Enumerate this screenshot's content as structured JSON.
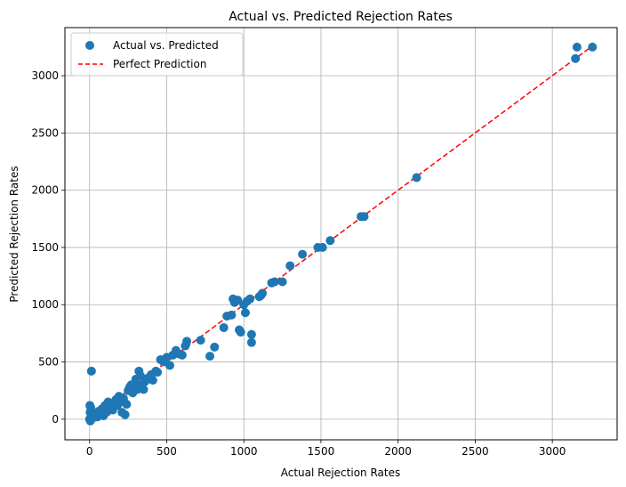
{
  "chart_data": {
    "type": "scatter",
    "title": "Actual vs. Predicted Rejection Rates",
    "xlabel": "Actual Rejection Rates",
    "ylabel": "Predicted Rejection Rates",
    "xlim": [
      -160,
      3420
    ],
    "ylim": [
      -180,
      3420
    ],
    "xticks": [
      0,
      500,
      1000,
      1500,
      2000,
      2500,
      3000
    ],
    "yticks": [
      0,
      500,
      1000,
      1500,
      2000,
      2500,
      3000
    ],
    "grid": true,
    "legend": {
      "placement": "top-left",
      "entries": [
        {
          "label": "Actual vs. Predicted",
          "marker": "circle",
          "color": "#1f77b4"
        },
        {
          "label": "Perfect Prediction",
          "marker": "dashed-line",
          "color": "#ff0000"
        }
      ]
    },
    "series": [
      {
        "color": "#1f77b4",
        "marker": "circle",
        "points": [
          [
            0,
            0
          ],
          [
            5,
            -15
          ],
          [
            10,
            20
          ],
          [
            3,
            60
          ],
          [
            8,
            100
          ],
          [
            2,
            120
          ],
          [
            12,
            420
          ],
          [
            20,
            10
          ],
          [
            30,
            30
          ],
          [
            40,
            50
          ],
          [
            50,
            20
          ],
          [
            60,
            70
          ],
          [
            70,
            40
          ],
          [
            80,
            90
          ],
          [
            90,
            30
          ],
          [
            100,
            120
          ],
          [
            110,
            60
          ],
          [
            120,
            150
          ],
          [
            130,
            90
          ],
          [
            140,
            110
          ],
          [
            150,
            80
          ],
          [
            160,
            140
          ],
          [
            170,
            170
          ],
          [
            180,
            120
          ],
          [
            190,
            200
          ],
          [
            200,
            150
          ],
          [
            210,
            60
          ],
          [
            220,
            180
          ],
          [
            230,
            40
          ],
          [
            240,
            130
          ],
          [
            250,
            250
          ],
          [
            260,
            280
          ],
          [
            270,
            300
          ],
          [
            280,
            230
          ],
          [
            290,
            310
          ],
          [
            300,
            350
          ],
          [
            310,
            260
          ],
          [
            320,
            420
          ],
          [
            330,
            380
          ],
          [
            340,
            300
          ],
          [
            350,
            260
          ],
          [
            360,
            330
          ],
          [
            380,
            360
          ],
          [
            400,
            390
          ],
          [
            410,
            340
          ],
          [
            430,
            420
          ],
          [
            440,
            410
          ],
          [
            460,
            520
          ],
          [
            480,
            500
          ],
          [
            500,
            540
          ],
          [
            520,
            470
          ],
          [
            540,
            560
          ],
          [
            560,
            600
          ],
          [
            580,
            570
          ],
          [
            600,
            560
          ],
          [
            620,
            640
          ],
          [
            630,
            680
          ],
          [
            720,
            690
          ],
          [
            780,
            550
          ],
          [
            810,
            630
          ],
          [
            870,
            800
          ],
          [
            890,
            900
          ],
          [
            920,
            910
          ],
          [
            930,
            1050
          ],
          [
            940,
            1020
          ],
          [
            960,
            1040
          ],
          [
            970,
            780
          ],
          [
            980,
            760
          ],
          [
            1000,
            1000
          ],
          [
            1010,
            930
          ],
          [
            1020,
            1030
          ],
          [
            1040,
            1050
          ],
          [
            1050,
            740
          ],
          [
            1050,
            670
          ],
          [
            1100,
            1070
          ],
          [
            1110,
            1080
          ],
          [
            1120,
            1100
          ],
          [
            1180,
            1190
          ],
          [
            1200,
            1200
          ],
          [
            1250,
            1200
          ],
          [
            1300,
            1340
          ],
          [
            1380,
            1440
          ],
          [
            1480,
            1500
          ],
          [
            1510,
            1500
          ],
          [
            1560,
            1560
          ],
          [
            1760,
            1770
          ],
          [
            1780,
            1770
          ],
          [
            2120,
            2110
          ],
          [
            3150,
            3150
          ],
          [
            3160,
            3250
          ],
          [
            3260,
            3250
          ]
        ]
      },
      {
        "line_style": "dashed",
        "color": "#ff0000",
        "points": [
          [
            0,
            0
          ],
          [
            3260,
            3260
          ]
        ]
      }
    ]
  }
}
